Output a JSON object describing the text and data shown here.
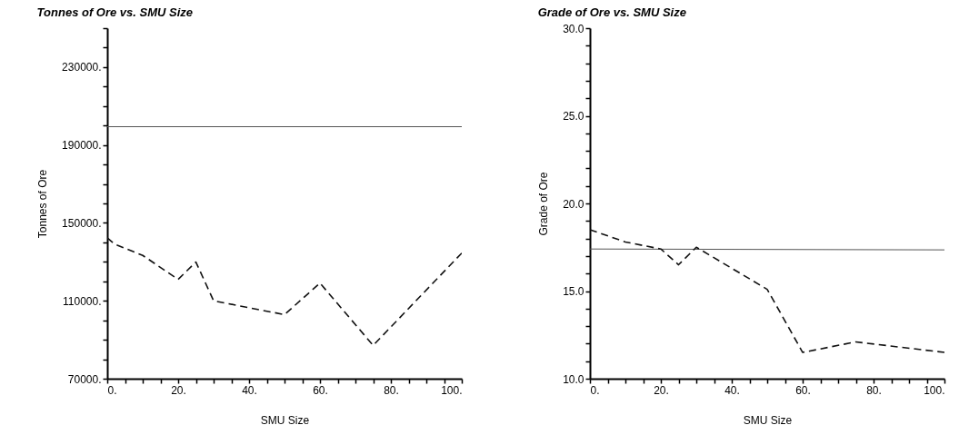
{
  "chart_data": [
    {
      "type": "line",
      "title": "Tonnes of Ore vs. SMU Size",
      "xlabel": "SMU Size",
      "ylabel": "Tonnes of Ore",
      "xlim": [
        0,
        100
      ],
      "ylim": [
        70000,
        250000
      ],
      "xticks": [
        {
          "value": 0,
          "label": "0."
        },
        {
          "value": 5,
          "label": null
        },
        {
          "value": 10,
          "label": null
        },
        {
          "value": 15,
          "label": null
        },
        {
          "value": 20,
          "label": "20."
        },
        {
          "value": 25,
          "label": null
        },
        {
          "value": 30,
          "label": null
        },
        {
          "value": 35,
          "label": null
        },
        {
          "value": 40,
          "label": "40."
        },
        {
          "value": 45,
          "label": null
        },
        {
          "value": 50,
          "label": null
        },
        {
          "value": 55,
          "label": null
        },
        {
          "value": 60,
          "label": "60."
        },
        {
          "value": 65,
          "label": null
        },
        {
          "value": 70,
          "label": null
        },
        {
          "value": 75,
          "label": null
        },
        {
          "value": 80,
          "label": "80."
        },
        {
          "value": 85,
          "label": null
        },
        {
          "value": 90,
          "label": null
        },
        {
          "value": 95,
          "label": null
        },
        {
          "value": 100,
          "label": "100."
        }
      ],
      "yticks": [
        {
          "value": 70000,
          "label": "70000."
        },
        {
          "value": 80000,
          "label": null
        },
        {
          "value": 90000,
          "label": null
        },
        {
          "value": 100000,
          "label": null
        },
        {
          "value": 110000,
          "label": "110000."
        },
        {
          "value": 120000,
          "label": null
        },
        {
          "value": 130000,
          "label": null
        },
        {
          "value": 140000,
          "label": null
        },
        {
          "value": 150000,
          "label": "150000."
        },
        {
          "value": 160000,
          "label": null
        },
        {
          "value": 170000,
          "label": null
        },
        {
          "value": 180000,
          "label": null
        },
        {
          "value": 190000,
          "label": "190000."
        },
        {
          "value": 200000,
          "label": null
        },
        {
          "value": 210000,
          "label": null
        },
        {
          "value": 220000,
          "label": null
        },
        {
          "value": 230000,
          "label": "230000."
        },
        {
          "value": 240000,
          "label": null
        },
        {
          "value": 250000,
          "label": null
        }
      ],
      "series": [
        {
          "color": "#555555",
          "line_style": "solid",
          "x": [
            0,
            100
          ],
          "values": [
            199400,
            199400
          ]
        },
        {
          "color": "#111111",
          "line_style": "dashed",
          "x": [
            0,
            2,
            10,
            20,
            25,
            30,
            50,
            60,
            75,
            100
          ],
          "values": [
            142300,
            139200,
            133300,
            121000,
            129900,
            110000,
            102900,
            119100,
            87100,
            134500
          ]
        }
      ]
    },
    {
      "type": "line",
      "title": "Grade of Ore vs. SMU Size",
      "xlabel": "SMU Size",
      "ylabel": "Grade of Ore",
      "xlim": [
        0,
        100
      ],
      "ylim": [
        10,
        30
      ],
      "xticks": [
        {
          "value": 0,
          "label": "0."
        },
        {
          "value": 5,
          "label": null
        },
        {
          "value": 10,
          "label": null
        },
        {
          "value": 15,
          "label": null
        },
        {
          "value": 20,
          "label": "20."
        },
        {
          "value": 25,
          "label": null
        },
        {
          "value": 30,
          "label": null
        },
        {
          "value": 35,
          "label": null
        },
        {
          "value": 40,
          "label": "40."
        },
        {
          "value": 45,
          "label": null
        },
        {
          "value": 50,
          "label": null
        },
        {
          "value": 55,
          "label": null
        },
        {
          "value": 60,
          "label": "60."
        },
        {
          "value": 65,
          "label": null
        },
        {
          "value": 70,
          "label": null
        },
        {
          "value": 75,
          "label": null
        },
        {
          "value": 80,
          "label": "80."
        },
        {
          "value": 85,
          "label": null
        },
        {
          "value": 90,
          "label": null
        },
        {
          "value": 95,
          "label": null
        },
        {
          "value": 100,
          "label": "100."
        }
      ],
      "yticks": [
        {
          "value": 10,
          "label": "10.0"
        },
        {
          "value": 11,
          "label": null
        },
        {
          "value": 12,
          "label": null
        },
        {
          "value": 13,
          "label": null
        },
        {
          "value": 14,
          "label": null
        },
        {
          "value": 15,
          "label": "15.0"
        },
        {
          "value": 16,
          "label": null
        },
        {
          "value": 17,
          "label": null
        },
        {
          "value": 18,
          "label": null
        },
        {
          "value": 19,
          "label": null
        },
        {
          "value": 20,
          "label": "20.0"
        },
        {
          "value": 21,
          "label": null
        },
        {
          "value": 22,
          "label": null
        },
        {
          "value": 23,
          "label": null
        },
        {
          "value": 24,
          "label": null
        },
        {
          "value": 25,
          "label": "25.0"
        },
        {
          "value": 26,
          "label": null
        },
        {
          "value": 27,
          "label": null
        },
        {
          "value": 28,
          "label": null
        },
        {
          "value": 29,
          "label": null
        },
        {
          "value": 30,
          "label": "30.0"
        }
      ],
      "series": [
        {
          "color": "#555555",
          "line_style": "solid",
          "x": [
            0,
            100
          ],
          "values": [
            17.4,
            17.35
          ]
        },
        {
          "color": "#111111",
          "line_style": "dashed",
          "x": [
            0,
            10,
            20,
            25,
            30,
            50,
            60,
            75,
            100
          ],
          "values": [
            18.5,
            17.8,
            17.4,
            16.5,
            17.5,
            15.1,
            11.5,
            12.1,
            11.5
          ]
        }
      ]
    }
  ]
}
